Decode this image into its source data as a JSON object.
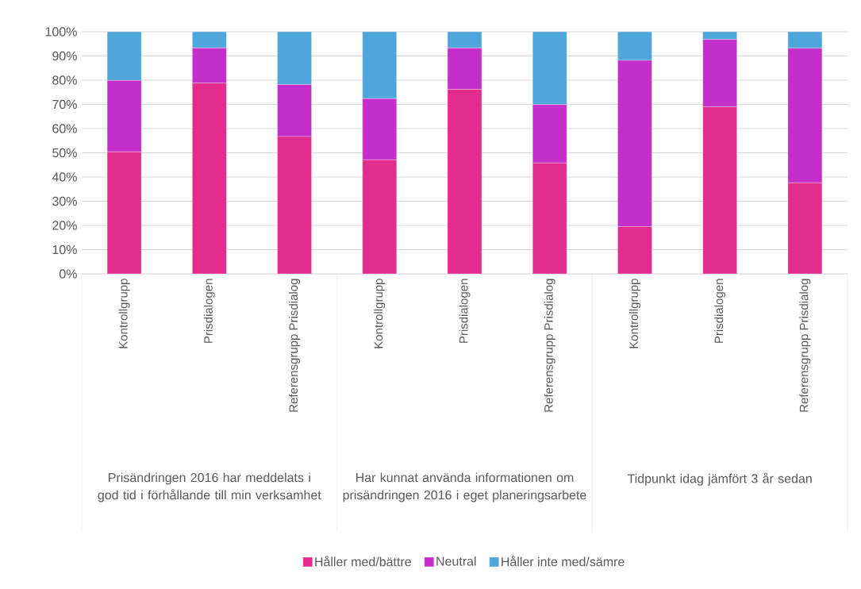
{
  "chart_data": {
    "type": "bar",
    "stacked": true,
    "categories": [
      "Kontrollgrupp",
      "Prisdialogen",
      "Referensgrupp Prisdialog",
      "Kontrollgrupp",
      "Prisdialogen",
      "Referensgrupp Prisdialog",
      "Kontrollgrupp",
      "Prisdialogen",
      "Referensgrupp Prisdialog"
    ],
    "series": [
      {
        "name": "Håller med/bättre",
        "color": "#e32d8e",
        "values": [
          50.4,
          78.8,
          56.7,
          47.1,
          76.2,
          45.8,
          19.5,
          69.0,
          37.6
        ]
      },
      {
        "name": "Neutral",
        "color": "#c52fc9",
        "values": [
          29.5,
          14.5,
          21.5,
          25.3,
          17.1,
          24.1,
          68.7,
          27.8,
          55.6
        ]
      },
      {
        "name": "Håller inte med/sämre",
        "color": "#4fa6dc",
        "values": [
          20.1,
          6.7,
          21.8,
          27.6,
          6.7,
          30.1,
          11.8,
          3.2,
          6.8
        ]
      }
    ],
    "ylim": [
      0,
      100
    ],
    "yticks": [
      {
        "value": 0,
        "label": "0%"
      },
      {
        "value": 10,
        "label": "10%"
      },
      {
        "value": 20,
        "label": "20%"
      },
      {
        "value": 30,
        "label": "30%"
      },
      {
        "value": 40,
        "label": "40%"
      },
      {
        "value": 50,
        "label": "50%"
      },
      {
        "value": 60,
        "label": "60%"
      },
      {
        "value": 70,
        "label": "70%"
      },
      {
        "value": 80,
        "label": "80%"
      },
      {
        "value": 90,
        "label": "90%"
      },
      {
        "value": 100,
        "label": "100%"
      }
    ],
    "grid": "y",
    "legend": "bottom",
    "annotations": [
      "Prisändringen 2016 har meddelats i god tid i förhållande till min verksamhet",
      "Har kunnat använda informationen om prisändringen 2016 i eget planeringsarbete",
      "Tidpunkt idag jämfört 3 år sedan"
    ]
  }
}
